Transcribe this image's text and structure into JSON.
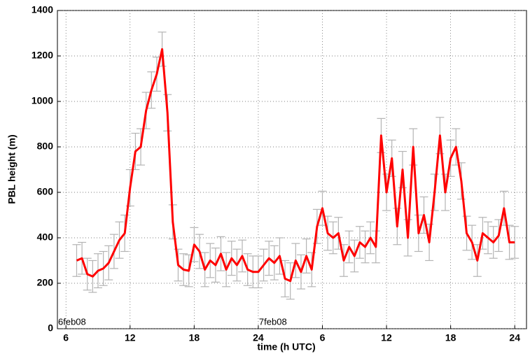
{
  "chart_data": {
    "type": "line",
    "xlabel": "time (h UTC)",
    "ylabel": "PBL height (m)",
    "xlim": [
      5.2,
      49.1
    ],
    "ylim": [
      0,
      1400
    ],
    "xticks": [
      6,
      12,
      18,
      24,
      {
        "value": 30,
        "label": "6"
      },
      {
        "value": 36,
        "label": "12"
      },
      {
        "value": 42,
        "label": "18"
      },
      {
        "value": 48,
        "label": "24"
      }
    ],
    "yticks": [
      0,
      200,
      400,
      600,
      800,
      1000,
      1200,
      1400
    ],
    "grid": true,
    "annotations": [
      {
        "text": "6feb08",
        "x": 5.2
      },
      {
        "text": "7feb08",
        "x": 24
      }
    ],
    "x": [
      7,
      7.5,
      8,
      8.5,
      9,
      9.5,
      10,
      10.5,
      11,
      11.5,
      12,
      12.5,
      13,
      13.5,
      14,
      14.5,
      15,
      15.5,
      16,
      16.5,
      17,
      17.5,
      18,
      18.5,
      19,
      19.5,
      20,
      20.5,
      21,
      21.5,
      22,
      22.5,
      23,
      23.5,
      24,
      24.5,
      25,
      25.5,
      26,
      26.5,
      27,
      27.5,
      28,
      28.5,
      29,
      29.5,
      30,
      30.5,
      31,
      31.5,
      32,
      32.5,
      33,
      33.5,
      34,
      34.5,
      35,
      35.5,
      36,
      36.5,
      37,
      37.5,
      38,
      38.5,
      39,
      39.5,
      40,
      40.5,
      41,
      41.5,
      42,
      42.5,
      43,
      43.5,
      44,
      44.5,
      45,
      45.5,
      46,
      46.5,
      47,
      47.5,
      48
    ],
    "series": [
      {
        "name": "PBL height",
        "color": "#ff0000",
        "error_color": "#b4b4b4",
        "values": [
          300,
          310,
          240,
          230,
          255,
          265,
          290,
          340,
          390,
          420,
          620,
          780,
          800,
          960,
          1050,
          1120,
          1230,
          950,
          470,
          280,
          260,
          255,
          370,
          340,
          260,
          300,
          280,
          330,
          260,
          310,
          280,
          320,
          260,
          250,
          250,
          280,
          310,
          290,
          320,
          220,
          210,
          300,
          250,
          320,
          260,
          450,
          530,
          420,
          400,
          420,
          300,
          360,
          320,
          380,
          360,
          400,
          360,
          850,
          600,
          750,
          450,
          700,
          400,
          800,
          420,
          500,
          380,
          600,
          850,
          600,
          750,
          800,
          650,
          420,
          380,
          300,
          420,
          400,
          380,
          410,
          530,
          380,
          380
        ],
        "errors": [
          70,
          70,
          70,
          70,
          75,
          75,
          75,
          75,
          80,
          80,
          80,
          80,
          80,
          80,
          80,
          75,
          75,
          80,
          75,
          70,
          70,
          70,
          75,
          75,
          75,
          75,
          75,
          75,
          75,
          75,
          70,
          70,
          70,
          70,
          70,
          70,
          75,
          75,
          80,
          80,
          80,
          75,
          75,
          75,
          75,
          75,
          75,
          75,
          70,
          70,
          70,
          70,
          70,
          70,
          70,
          70,
          70,
          75,
          80,
          80,
          80,
          80,
          80,
          80,
          80,
          80,
          80,
          80,
          80,
          80,
          80,
          80,
          80,
          75,
          75,
          70,
          70,
          70,
          70,
          70,
          75,
          75,
          70
        ]
      }
    ]
  }
}
